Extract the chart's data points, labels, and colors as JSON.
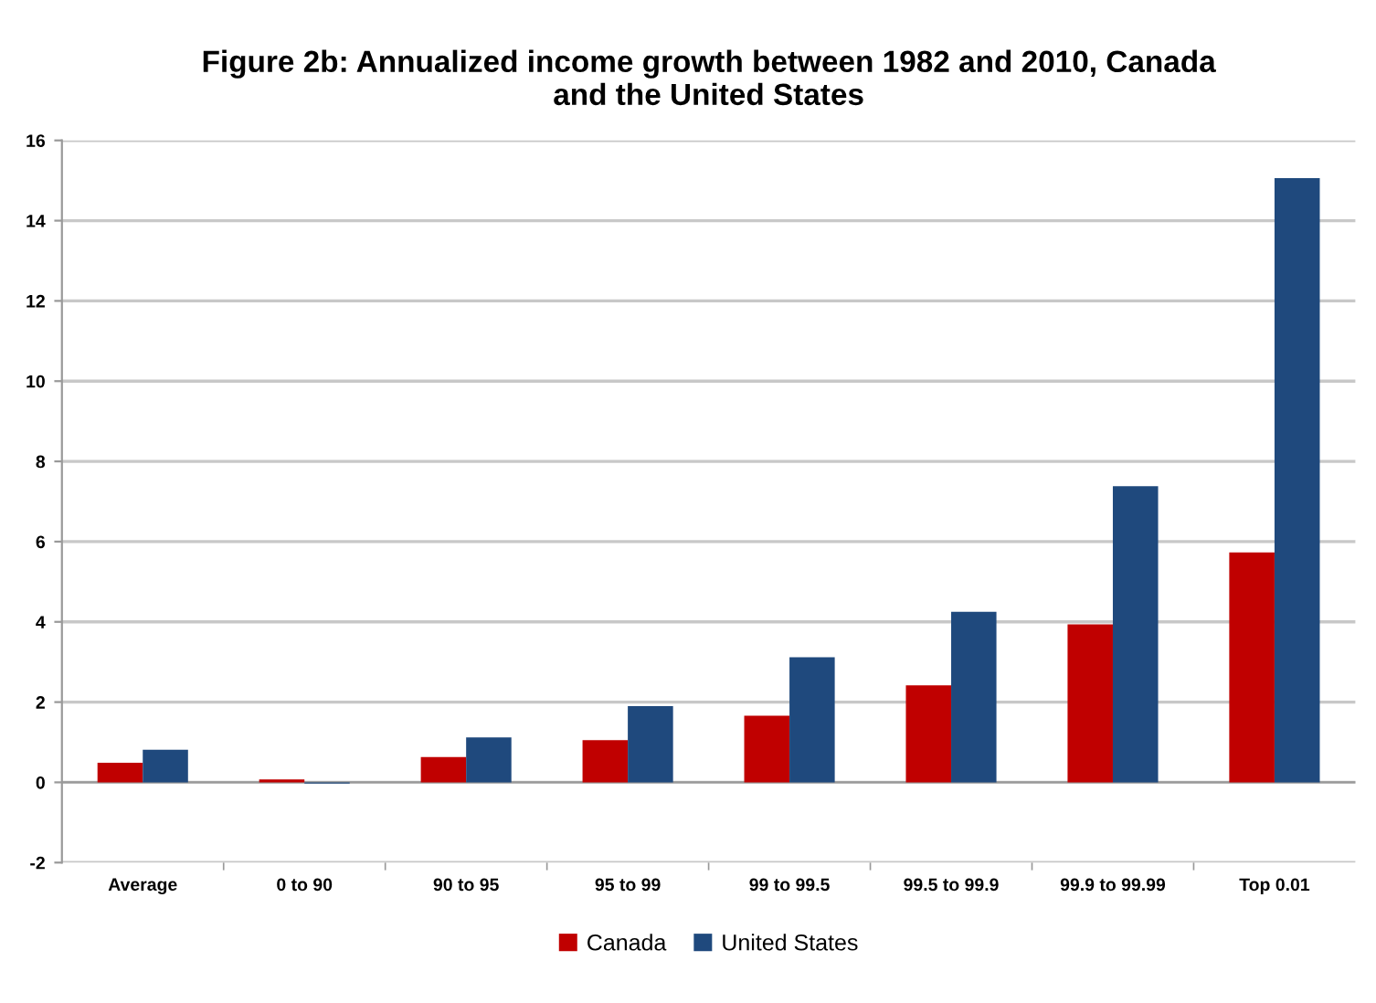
{
  "chart_data": {
    "type": "bar",
    "title": "Figure 2b: Annualized income growth between 1982 and 2010, Canada\nand the United States",
    "categories": [
      "Average",
      "0 to 90",
      "90 to 95",
      "95 to 99",
      "99 to 99.5",
      "99.5 to 99.9",
      "99.9 to 99.99",
      "Top 0.01"
    ],
    "series": [
      {
        "name": "Canada",
        "color": "#c00000",
        "values": [
          0.49,
          0.07,
          0.63,
          1.05,
          1.66,
          2.42,
          3.94,
          5.73
        ]
      },
      {
        "name": "United States",
        "color": "#1f497d",
        "values": [
          0.81,
          -0.03,
          1.12,
          1.9,
          3.12,
          4.25,
          7.38,
          15.06
        ]
      }
    ],
    "ylim": [
      -2,
      16
    ],
    "yticks": [
      {
        "value": -2,
        "label": "-2"
      },
      0,
      2,
      4,
      6,
      8,
      10,
      12,
      14,
      16
    ],
    "grid": "y",
    "legend": "bottom"
  }
}
